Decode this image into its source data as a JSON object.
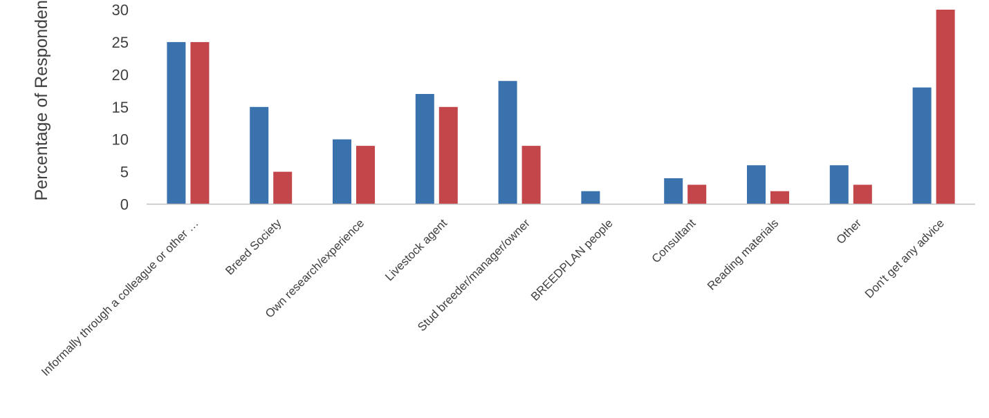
{
  "chart_data": {
    "type": "bar",
    "ylabel": "Percentage of Responden",
    "xlabel": "",
    "ylim": [
      0,
      30
    ],
    "yticks": [
      0,
      5,
      10,
      15,
      20,
      25,
      30
    ],
    "grid": false,
    "legend": "none",
    "categories": [
      "Informally through a colleague or other …",
      "Breed Society",
      "Own research/experience",
      "Livestock agent",
      "Stud breeder/manager/owner",
      "BREEDPLAN people",
      "Consultant",
      "Reading materials",
      "Other",
      "Don't get any advice"
    ],
    "series": [
      {
        "values": [
          25,
          15,
          10,
          17,
          19,
          2,
          4,
          6,
          6,
          18
        ],
        "color": "#3a72ad"
      },
      {
        "values": [
          25,
          5,
          9,
          15,
          9,
          0,
          3,
          2,
          3,
          30
        ],
        "color": "#c3464a"
      }
    ]
  }
}
